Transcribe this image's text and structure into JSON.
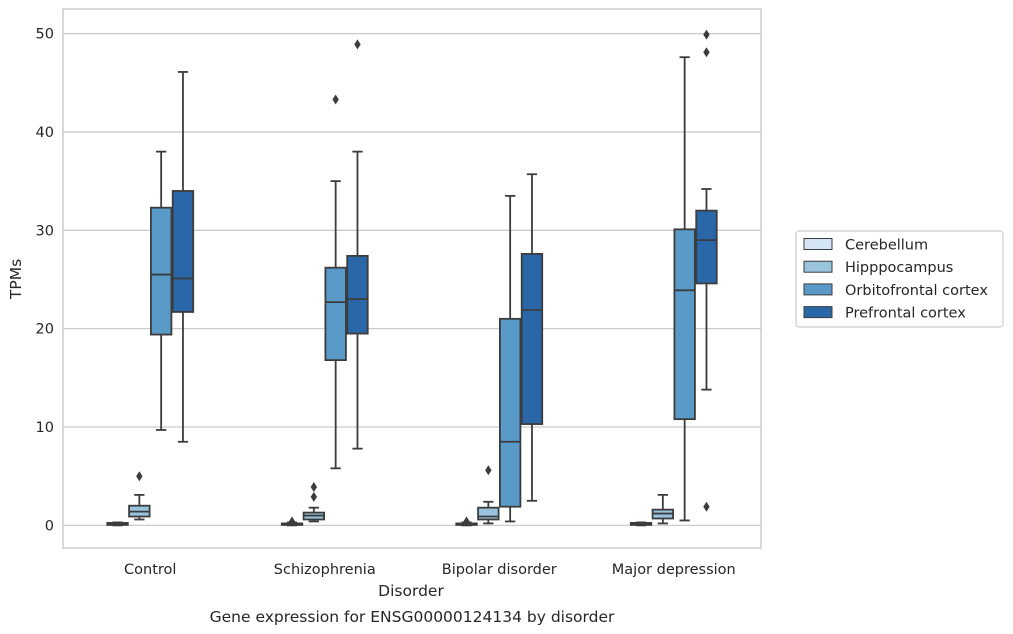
{
  "chart_data": {
    "type": "box",
    "title": "",
    "caption": "Gene expression for ENSG00000124134 by disorder",
    "xlabel": "Disorder",
    "ylabel": "TPMs",
    "ylim": [
      -2.3,
      52.5
    ],
    "yticks": [
      0,
      10,
      20,
      30,
      40,
      50
    ],
    "grid": "horizontal",
    "legend_position": "right",
    "categories": [
      "Control",
      "Schizophrenia",
      "Bipolar disorder",
      "Major depression"
    ],
    "series": [
      {
        "name": "Cerebellum",
        "color": "#d6e5f3",
        "boxes": [
          {
            "whislo": 0.0,
            "q1": 0.05,
            "med": 0.1,
            "q3": 0.25,
            "whishi": 0.3,
            "fliers": []
          },
          {
            "whislo": 0.0,
            "q1": 0.05,
            "med": 0.1,
            "q3": 0.2,
            "whishi": 0.3,
            "fliers": [
              0.4
            ]
          },
          {
            "whislo": 0.0,
            "q1": 0.05,
            "med": 0.1,
            "q3": 0.2,
            "whishi": 0.3,
            "fliers": [
              0.4
            ]
          },
          {
            "whislo": 0.0,
            "q1": 0.05,
            "med": 0.1,
            "q3": 0.25,
            "whishi": 0.3,
            "fliers": []
          }
        ]
      },
      {
        "name": "Hipppocampus",
        "color": "#9ac4de",
        "boxes": [
          {
            "whislo": 0.6,
            "q1": 0.9,
            "med": 1.4,
            "q3": 2.0,
            "whishi": 3.1,
            "fliers": [
              5.0
            ]
          },
          {
            "whislo": 0.4,
            "q1": 0.6,
            "med": 1.0,
            "q3": 1.3,
            "whishi": 1.8,
            "fliers": [
              2.9,
              3.9
            ]
          },
          {
            "whislo": 0.2,
            "q1": 0.6,
            "med": 0.9,
            "q3": 1.8,
            "whishi": 2.4,
            "fliers": [
              5.6
            ]
          },
          {
            "whislo": 0.2,
            "q1": 0.7,
            "med": 1.2,
            "q3": 1.6,
            "whishi": 3.1,
            "fliers": []
          }
        ]
      },
      {
        "name": "Orbitofrontal cortex",
        "color": "#5a9ac8",
        "boxes": [
          {
            "whislo": 9.7,
            "q1": 19.4,
            "med": 25.5,
            "q3": 32.3,
            "whishi": 38.0,
            "fliers": []
          },
          {
            "whislo": 5.8,
            "q1": 16.8,
            "med": 22.7,
            "q3": 26.2,
            "whishi": 35.0,
            "fliers": [
              43.3
            ]
          },
          {
            "whislo": 0.4,
            "q1": 1.9,
            "med": 8.5,
            "q3": 21.0,
            "whishi": 33.5,
            "fliers": []
          },
          {
            "whislo": 0.5,
            "q1": 10.8,
            "med": 23.9,
            "q3": 30.1,
            "whishi": 47.6,
            "fliers": []
          }
        ]
      },
      {
        "name": "Prefrontal cortex",
        "color": "#2a67a8",
        "boxes": [
          {
            "whislo": 8.5,
            "q1": 21.7,
            "med": 25.1,
            "q3": 34.0,
            "whishi": 46.1,
            "fliers": []
          },
          {
            "whislo": 7.8,
            "q1": 19.5,
            "med": 23.0,
            "q3": 27.4,
            "whishi": 38.0,
            "fliers": [
              48.9
            ]
          },
          {
            "whislo": 2.5,
            "q1": 10.3,
            "med": 21.9,
            "q3": 27.6,
            "whishi": 35.7,
            "fliers": []
          },
          {
            "whislo": 13.8,
            "q1": 24.6,
            "med": 29.0,
            "q3": 32.0,
            "whishi": 34.2,
            "fliers": [
              1.9,
              48.1,
              49.9
            ]
          }
        ]
      }
    ]
  }
}
